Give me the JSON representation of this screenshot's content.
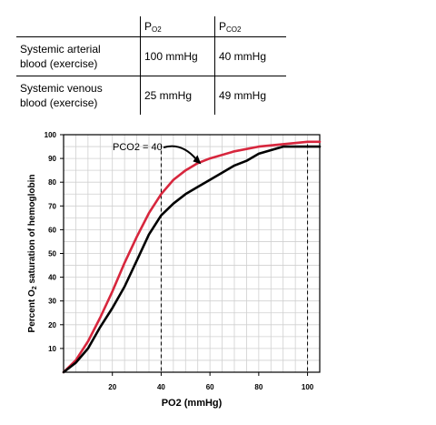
{
  "table": {
    "header": {
      "po2": {
        "main": "P",
        "sub": "O2"
      },
      "pco2": {
        "main": "P",
        "sub": "CO2"
      }
    },
    "rows": [
      {
        "label_line1": "Systemic arterial",
        "label_line2": "blood (exercise)",
        "po2": "100 mmHg",
        "pco2": "40 mmHg"
      },
      {
        "label_line1": "Systemic venous",
        "label_line2": "blood (exercise)",
        "po2": "25 mmHg",
        "pco2": "49 mmHg"
      }
    ]
  },
  "chart_data": {
    "type": "line",
    "xlabel": "PO2 (mmHg)",
    "ylabel": {
      "prefix": "Percent O",
      "sub": "2",
      "suffix": " saturation of hemoglobin"
    },
    "xlim": [
      0,
      105
    ],
    "ylim": [
      0,
      100
    ],
    "xticks": [
      20,
      40,
      60,
      80,
      100
    ],
    "yticks": [
      10,
      20,
      30,
      40,
      50,
      60,
      70,
      80,
      90,
      100
    ],
    "grid": true,
    "reference_lines_x": [
      40,
      100
    ],
    "annotation": "PCO2 = 40",
    "series": [
      {
        "color": "#d7263d",
        "x": [
          0,
          5,
          10,
          15,
          20,
          25,
          30,
          35,
          40,
          45,
          50,
          55,
          60,
          70,
          80,
          90,
          100,
          105
        ],
        "y": [
          0,
          5,
          13,
          23,
          34,
          46,
          57,
          67,
          75,
          81,
          85,
          88,
          90,
          93,
          95,
          96,
          97,
          97
        ]
      },
      {
        "color": "#000000",
        "x": [
          0,
          5,
          10,
          15,
          20,
          25,
          30,
          35,
          40,
          45,
          50,
          55,
          60,
          65,
          70,
          75,
          80,
          90,
          100,
          105
        ],
        "y": [
          0,
          4,
          10,
          19,
          27,
          36,
          47,
          58,
          66,
          71,
          75,
          78,
          81,
          84,
          87,
          89,
          92,
          95,
          95,
          95
        ]
      }
    ]
  }
}
